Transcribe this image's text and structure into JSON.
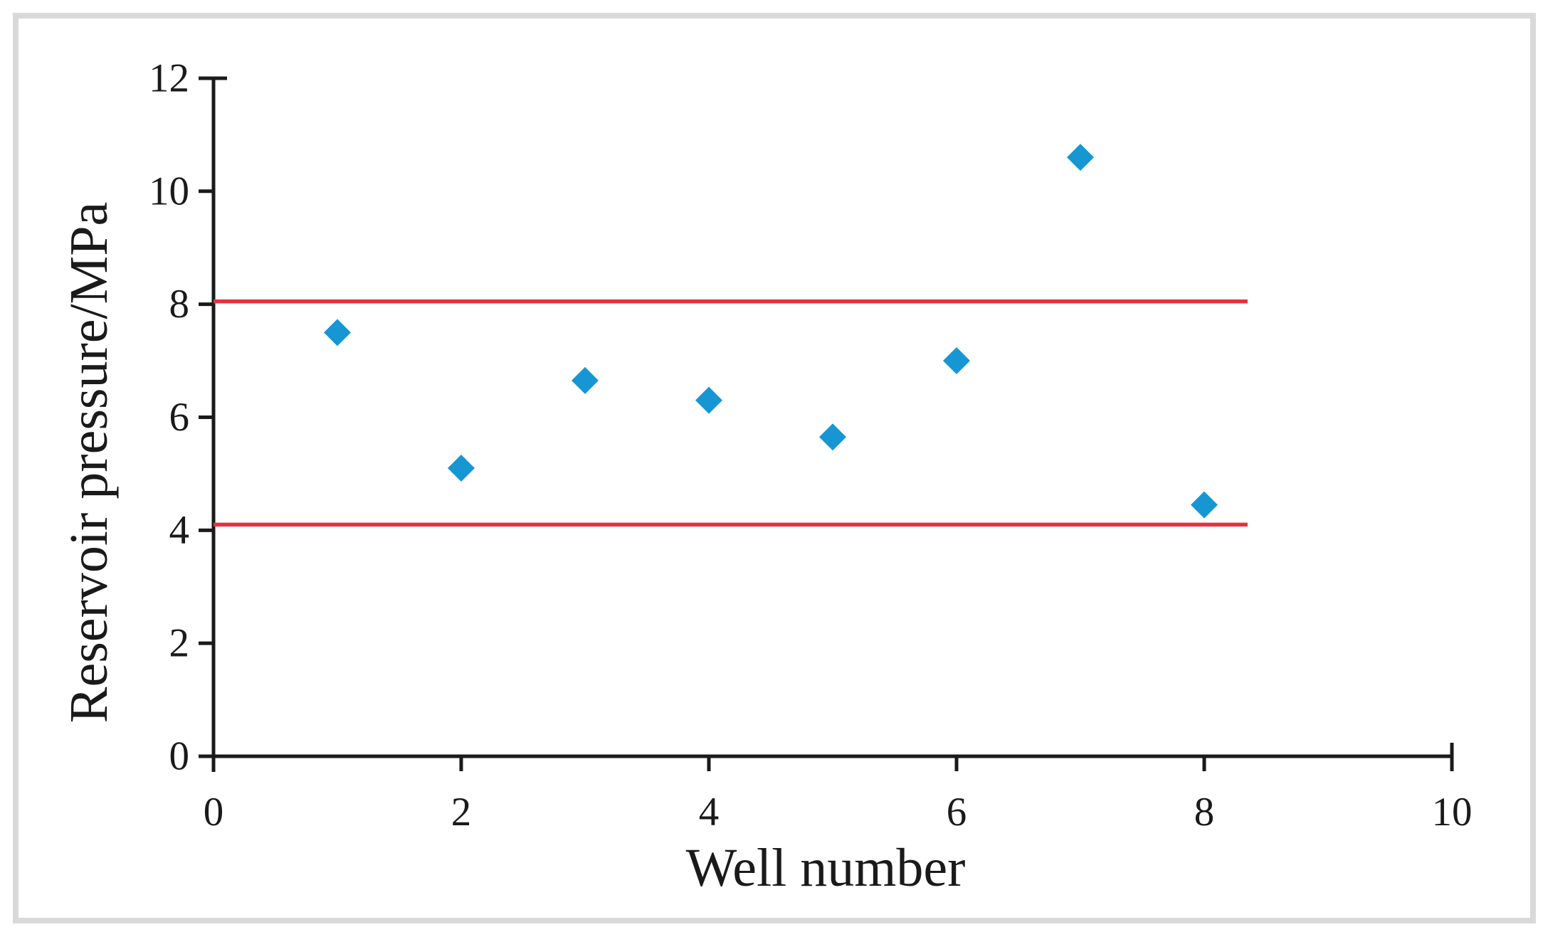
{
  "figure": {
    "background_color": "#ffffff",
    "border_color": "#d9d9d9"
  },
  "chart_data": {
    "type": "scatter",
    "title": "",
    "xlabel": "Well number",
    "ylabel": "Reservoir pressure/MPa",
    "xlim": [
      0,
      10
    ],
    "ylim": [
      0,
      12
    ],
    "x_ticks": [
      0,
      2,
      4,
      6,
      8,
      10
    ],
    "y_ticks": [
      0,
      2,
      4,
      6,
      8,
      10,
      12
    ],
    "grid": false,
    "legend": "none",
    "axis_color": "#1a1a1a",
    "series": [
      {
        "name": "reservoir-pressure",
        "marker": "diamond",
        "color": "#1697d3",
        "points": [
          {
            "x": 1,
            "y": 7.5
          },
          {
            "x": 2,
            "y": 5.1
          },
          {
            "x": 3,
            "y": 6.65
          },
          {
            "x": 4,
            "y": 6.3
          },
          {
            "x": 5,
            "y": 5.65
          },
          {
            "x": 6,
            "y": 7.0
          },
          {
            "x": 7,
            "y": 10.6
          },
          {
            "x": 8,
            "y": 4.45
          }
        ]
      }
    ],
    "reference_lines": [
      {
        "name": "upper-pressure-limit",
        "y": 8.05,
        "x_start": 0,
        "x_end": 8.35,
        "color": "#e8303c"
      },
      {
        "name": "lower-pressure-limit",
        "y": 4.1,
        "x_start": 0,
        "x_end": 8.35,
        "color": "#e8303c"
      }
    ]
  }
}
